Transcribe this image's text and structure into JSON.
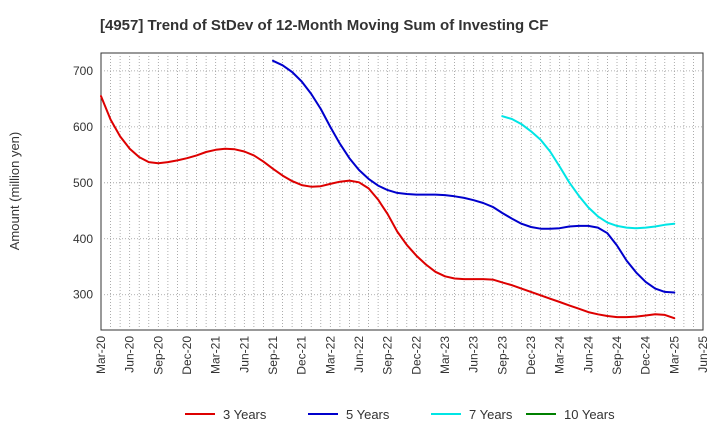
{
  "chart_data": {
    "type": "line",
    "title": "[4957]  Trend of StDev of 12-Month Moving Sum of Investing CF",
    "ylabel": "Amount (million yen)",
    "xlabel": "",
    "x_ticks": [
      "Mar-20",
      "Jun-20",
      "Sep-20",
      "Dec-20",
      "Mar-21",
      "Jun-21",
      "Sep-21",
      "Dec-21",
      "Mar-22",
      "Jun-22",
      "Sep-22",
      "Dec-22",
      "Mar-23",
      "Jun-23",
      "Sep-23",
      "Dec-23",
      "Mar-24",
      "Jun-24",
      "Sep-24",
      "Dec-24",
      "Mar-25",
      "Jun-25"
    ],
    "x_range": [
      "Mar-20",
      "Jun-25"
    ],
    "y_ticks": [
      300,
      400,
      500,
      600,
      700
    ],
    "ylim": [
      237,
      732
    ],
    "grid": true,
    "legend_position": "bottom",
    "series": [
      {
        "name": "3 Years",
        "color": "#dd0000",
        "x": [
          "Mar-20",
          "Apr-20",
          "May-20",
          "Jun-20",
          "Jul-20",
          "Aug-20",
          "Sep-20",
          "Oct-20",
          "Nov-20",
          "Dec-20",
          "Jan-21",
          "Feb-21",
          "Mar-21",
          "Apr-21",
          "May-21",
          "Jun-21",
          "Jul-21",
          "Aug-21",
          "Sep-21",
          "Oct-21",
          "Nov-21",
          "Dec-21",
          "Jan-22",
          "Feb-22",
          "Mar-22",
          "Apr-22",
          "May-22",
          "Jun-22",
          "Jul-22",
          "Aug-22",
          "Sep-22",
          "Oct-22",
          "Nov-22",
          "Dec-22",
          "Jan-23",
          "Feb-23",
          "Mar-23",
          "Apr-23",
          "May-23",
          "Jun-23",
          "Jul-23",
          "Aug-23",
          "Sep-23",
          "Oct-23",
          "Nov-23",
          "Dec-23",
          "Jan-24",
          "Feb-24",
          "Mar-24",
          "Apr-24",
          "May-24",
          "Jun-24",
          "Jul-24",
          "Aug-24",
          "Sep-24",
          "Oct-24",
          "Nov-24",
          "Dec-24",
          "Jan-25",
          "Feb-25",
          "Mar-25"
        ],
        "values": [
          655,
          613,
          583,
          561,
          546,
          537,
          535,
          537,
          540,
          544,
          549,
          555,
          559,
          561,
          560,
          556,
          549,
          538,
          525,
          513,
          503,
          496,
          493,
          494,
          498,
          502,
          504,
          501,
          490,
          470,
          444,
          413,
          389,
          370,
          354,
          341,
          333,
          329,
          328,
          328,
          328,
          327,
          322,
          317,
          311,
          305,
          299,
          293,
          287,
          281,
          275,
          269,
          265,
          262,
          260,
          260,
          261,
          263,
          265,
          264,
          258
        ]
      },
      {
        "name": "5 Years",
        "color": "#0000cc",
        "x": [
          "Sep-21",
          "Oct-21",
          "Nov-21",
          "Dec-21",
          "Jan-22",
          "Feb-22",
          "Mar-22",
          "Apr-22",
          "May-22",
          "Jun-22",
          "Jul-22",
          "Aug-22",
          "Sep-22",
          "Oct-22",
          "Nov-22",
          "Dec-22",
          "Jan-23",
          "Feb-23",
          "Mar-23",
          "Apr-23",
          "May-23",
          "Jun-23",
          "Jul-23",
          "Aug-23",
          "Sep-23",
          "Oct-23",
          "Nov-23",
          "Dec-23",
          "Jan-24",
          "Feb-24",
          "Mar-24",
          "Apr-24",
          "May-24",
          "Jun-24",
          "Jul-24",
          "Aug-24",
          "Sep-24",
          "Oct-24",
          "Nov-24",
          "Dec-24",
          "Jan-25",
          "Feb-25",
          "Mar-25"
        ],
        "values": [
          718,
          710,
          698,
          681,
          659,
          632,
          600,
          570,
          544,
          523,
          507,
          495,
          487,
          482,
          480,
          479,
          479,
          479,
          478,
          476,
          473,
          469,
          464,
          457,
          446,
          436,
          427,
          421,
          418,
          418,
          419,
          422,
          423,
          423,
          420,
          410,
          388,
          361,
          340,
          323,
          311,
          305,
          304
        ]
      },
      {
        "name": "7 Years",
        "color": "#00e5e5",
        "x": [
          "Sep-23",
          "Oct-23",
          "Nov-23",
          "Dec-23",
          "Jan-24",
          "Feb-24",
          "Mar-24",
          "Apr-24",
          "May-24",
          "Jun-24",
          "Jul-24",
          "Aug-24",
          "Sep-24",
          "Oct-24",
          "Nov-24",
          "Dec-24",
          "Jan-25",
          "Feb-25",
          "Mar-25"
        ],
        "values": [
          619,
          614,
          605,
          592,
          577,
          556,
          529,
          501,
          477,
          456,
          440,
          429,
          423,
          420,
          419,
          420,
          422,
          425,
          427
        ]
      },
      {
        "name": "10 Years",
        "color": "#008000",
        "x": [],
        "values": []
      }
    ]
  }
}
